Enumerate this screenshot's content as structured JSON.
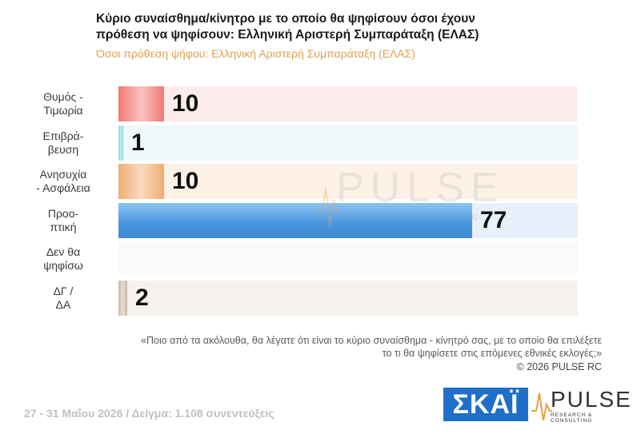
{
  "header": {
    "title_line1": "Κύριο συναίσθημα/κίνητρο με το οποίο θα ψηφίσουν όσοι έχουν",
    "title_line2": "πρόθεση να ψηφίσουν: Ελληνική Αριστερή Συμπαράταξη (ΕΛΑΣ)",
    "subtitle": "Όσοι πρόθεση ψήφου: Ελληνική Αριστερή Συμπαράταξη (ΕΛΑΣ)"
  },
  "chart_data": {
    "type": "bar",
    "orientation": "horizontal",
    "title": "Κύριο συναίσθημα/κίνητρο με το οποίο θα ψηφίσουν όσοι έχουν πρόθεση να ψηφίσουν: Ελληνική Αριστερή Συμπαράταξη (ΕΛΑΣ)",
    "subtitle": "Όσοι πρόθεση ψήφου: Ελληνική Αριστερή Συμπαράταξη (ΕΛΑΣ)",
    "categories": [
      [
        "Θυμός -",
        "Τιμωρία"
      ],
      [
        "Επιβρά-",
        "βευση"
      ],
      [
        "Ανησυχία",
        "- Ασφάλεια"
      ],
      [
        "Προο-",
        "πτική"
      ],
      [
        "Δεν θα",
        "ψηφίσω"
      ],
      [
        "ΔΓ /",
        "ΔΑ"
      ]
    ],
    "values": [
      10,
      1,
      10,
      77,
      0,
      2
    ],
    "value_labels": [
      "10",
      "1",
      "10",
      "77",
      "",
      "2"
    ],
    "xlim": [
      0,
      100
    ],
    "bar_colors": [
      "#f07a74",
      "#8fd3da",
      "#f0ad72",
      "#4a98e0",
      "#cccccc",
      "#c8b8a4"
    ],
    "track_colors": [
      "#fdeceb",
      "#eef8f9",
      "#fdf1e6",
      "#e8f1fb",
      "#fafafa",
      "#f6f3ef"
    ],
    "grid": false,
    "legend": "none"
  },
  "watermark": {
    "name": "PULSE",
    "tagline": "RESEARCH & CONSULTING"
  },
  "notes": {
    "question_line1": "«Ποιο από τα ακόλουθα, θα λέγατε ότι είναι το κύριο συναίσθημα - κίνητρό σας, με το οποίο θα επιλέξετε",
    "question_line2": "το τι θα ψηφίσετε στις επόμενες εθνικές εκλογές;»",
    "copyright": "©  2026  PULSE RC"
  },
  "footer": {
    "text": "27 - 31  Μαΐου 2026  /  Δείγμα:  1.108 συνεντεύξεις"
  },
  "logos": {
    "skai": "ΣΚΑΪ",
    "pulse_name": "PULSE",
    "pulse_tagline": "RESEARCH & CONSULTING"
  }
}
